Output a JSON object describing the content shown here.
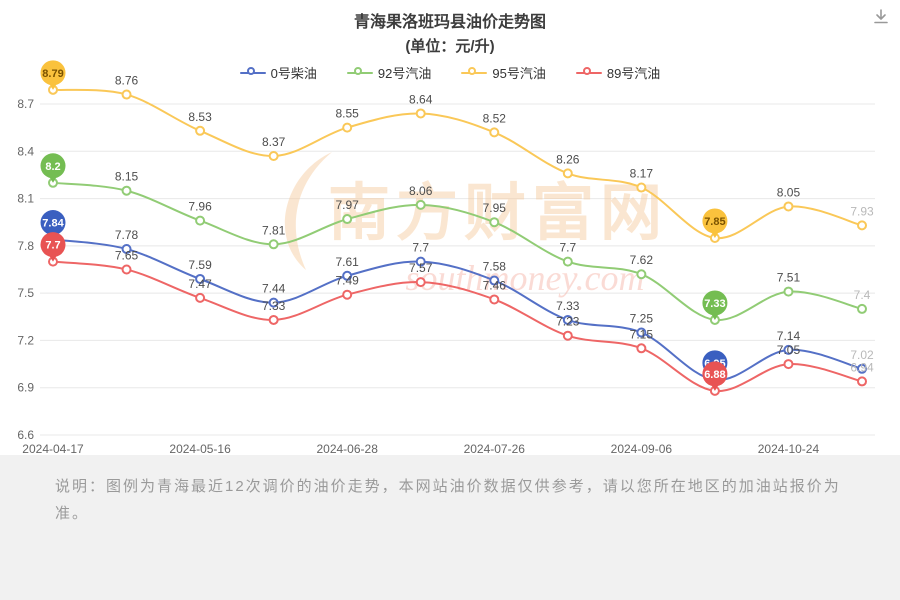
{
  "header": {
    "title_line1": "青海果洛班玛县油价走势图",
    "title_line2": "(单位：元/升)"
  },
  "legend": [
    {
      "label": "0号柴油",
      "color": "#5470c6"
    },
    {
      "label": "92号汽油",
      "color": "#91cc75"
    },
    {
      "label": "95号汽油",
      "color": "#fac858"
    },
    {
      "label": "89号汽油",
      "color": "#ee6666"
    }
  ],
  "chart_data": {
    "type": "line",
    "title": "青海果洛班玛县油价走势图",
    "subtitle": "(单位：元/升)",
    "x_labels": [
      "2024-04-17",
      "2024-05-16",
      "2024-06-28",
      "2024-07-26",
      "2024-09-06",
      "2024-10-24"
    ],
    "x_label_point_indices": [
      0,
      2,
      4,
      6,
      8,
      10
    ],
    "num_points": 12,
    "ylim": [
      6.6,
      8.7
    ],
    "y_ticks": [
      6.6,
      6.9,
      7.2,
      7.5,
      7.8,
      8.1,
      8.4,
      8.7
    ],
    "grid": true,
    "legend_position": "top",
    "series": [
      {
        "name": "0号柴油",
        "color": "#5470c6",
        "badge_color": "#3a5fc0",
        "badge_text_color": "#ffffff",
        "badge_indices": [
          0,
          9
        ],
        "values": [
          7.84,
          7.78,
          7.59,
          7.44,
          7.61,
          7.7,
          7.58,
          7.33,
          7.25,
          6.95,
          7.14,
          7.02
        ]
      },
      {
        "name": "92号汽油",
        "color": "#91cc75",
        "badge_color": "#74bd52",
        "badge_text_color": "#ffffff",
        "badge_indices": [
          0,
          9
        ],
        "values": [
          8.2,
          8.15,
          7.96,
          7.81,
          7.97,
          8.06,
          7.95,
          7.7,
          7.62,
          7.33,
          7.51,
          7.4
        ]
      },
      {
        "name": "95号汽油",
        "color": "#fac858",
        "badge_color": "#fac23d",
        "badge_text_color": "#7a5200",
        "badge_indices": [
          0,
          9
        ],
        "values": [
          8.79,
          8.76,
          8.53,
          8.37,
          8.55,
          8.64,
          8.52,
          8.26,
          8.17,
          7.85,
          8.05,
          7.93
        ]
      },
      {
        "name": "89号汽油",
        "color": "#ee6666",
        "badge_color": "#e85353",
        "badge_text_color": "#ffffff",
        "badge_indices": [
          0,
          9
        ],
        "values": [
          7.7,
          7.65,
          7.47,
          7.33,
          7.49,
          7.57,
          7.46,
          7.23,
          7.15,
          6.88,
          7.05,
          6.94
        ]
      }
    ]
  },
  "watermark": {
    "text": "南方财富网",
    "subtext": "southmoney.com"
  },
  "note": "说明：图例为青海最近12次调价的油价走势，本网站油价数据仅供参考，请以您所在地区的加油站报价为准。"
}
